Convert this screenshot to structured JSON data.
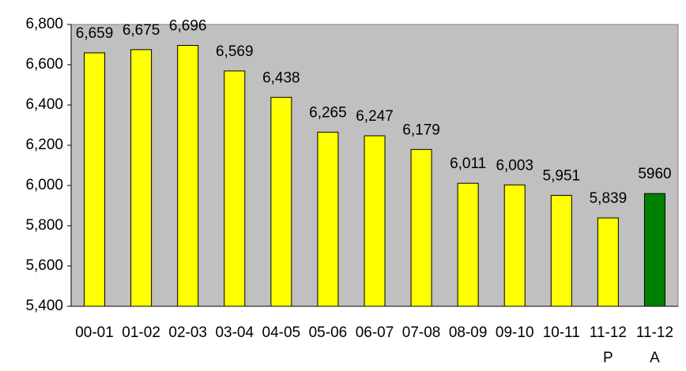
{
  "chart_data": {
    "type": "bar",
    "categories": [
      "00-01",
      "01-02",
      "02-03",
      "03-04",
      "04-05",
      "05-06",
      "06-07",
      "07-08",
      "08-09",
      "09-10",
      "10-11",
      "11-12 P",
      "11-12 A"
    ],
    "values": [
      6659,
      6675,
      6696,
      6569,
      6438,
      6265,
      6247,
      6179,
      6011,
      6003,
      5951,
      5839,
      5960
    ],
    "value_labels": [
      "6,659",
      "6,675",
      "6,696",
      "6,569",
      "6,438",
      "6,265",
      "6,247",
      "6,179",
      "6,011",
      "6,003",
      "5,951",
      "5,839",
      "5960"
    ],
    "colors": [
      "#ffff00",
      "#ffff00",
      "#ffff00",
      "#ffff00",
      "#ffff00",
      "#ffff00",
      "#ffff00",
      "#ffff00",
      "#ffff00",
      "#ffff00",
      "#ffff00",
      "#ffff00",
      "#008000"
    ],
    "ylim": [
      5400,
      6800
    ],
    "yticks": [
      {
        "value": 5400,
        "label": "5,400"
      },
      {
        "value": 5600,
        "label": "5,600"
      },
      {
        "value": 5800,
        "label": "5,800"
      },
      {
        "value": 6000,
        "label": "6,000"
      },
      {
        "value": 6200,
        "label": "6,200"
      },
      {
        "value": 6400,
        "label": "6,400"
      },
      {
        "value": 6600,
        "label": "6,600"
      },
      {
        "value": 6800,
        "label": "6,800"
      }
    ],
    "plot_background": "#c0c0c0"
  }
}
